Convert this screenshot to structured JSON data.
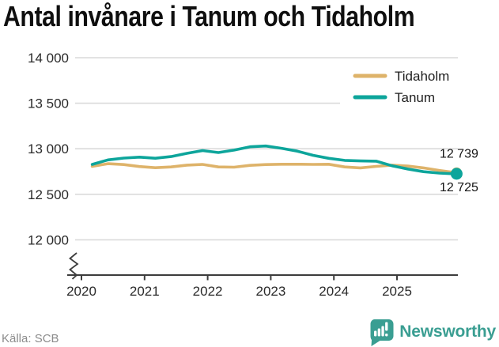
{
  "title": "Antal invånare i Tanum och Tidaholm",
  "footer": {
    "source": "Källa: SCB",
    "brand": "Newsworthy"
  },
  "chart_data": {
    "type": "line",
    "title": "Antal invånare i Tanum och Tidaholm",
    "xlabel": "",
    "ylabel": "",
    "x_unit": "year (decimal, monthly population data)",
    "ylim_shown": [
      12000,
      14000
    ],
    "axis_break": true,
    "grid": "horizontal",
    "legend_position": "top-right",
    "y_ticks": [
      "14 000",
      "13 500",
      "13 000",
      "12 500",
      "12 000"
    ],
    "y_tick_values": [
      14000,
      13500,
      13000,
      12500,
      12000
    ],
    "x_ticks": [
      "2020",
      "2021",
      "2022",
      "2023",
      "2024",
      "2025"
    ],
    "x_tick_values": [
      2020,
      2021,
      2022,
      2023,
      2024,
      2025
    ],
    "x": [
      2020.17,
      2020.42,
      2020.67,
      2020.92,
      2021.17,
      2021.42,
      2021.67,
      2021.92,
      2022.17,
      2022.42,
      2022.67,
      2022.92,
      2023.17,
      2023.42,
      2023.67,
      2023.92,
      2024.17,
      2024.42,
      2024.67,
      2024.92,
      2025.17,
      2025.42,
      2025.67,
      2025.92
    ],
    "series": [
      {
        "name": "Tidaholm",
        "color": "#deb36a",
        "end_value_label": "12 739",
        "end_value": 12739,
        "values": [
          12806,
          12836,
          12826,
          12805,
          12792,
          12800,
          12820,
          12828,
          12800,
          12798,
          12818,
          12826,
          12830,
          12830,
          12828,
          12830,
          12800,
          12790,
          12806,
          12820,
          12810,
          12790,
          12762,
          12739
        ]
      },
      {
        "name": "Tanum",
        "color": "#0da59b",
        "end_value_label": "12 725",
        "end_value": 12725,
        "values": [
          12828,
          12878,
          12898,
          12908,
          12896,
          12914,
          12950,
          12980,
          12958,
          12985,
          13022,
          13030,
          13005,
          12974,
          12928,
          12895,
          12872,
          12866,
          12864,
          12813,
          12778,
          12748,
          12733,
          12725
        ]
      }
    ]
  },
  "colors": {
    "tidaholm": "#deb36a",
    "tanum": "#0da59b",
    "gridline": "#dadada",
    "axis": "#3c3c3c",
    "brand_teal": "#3a9e92"
  }
}
